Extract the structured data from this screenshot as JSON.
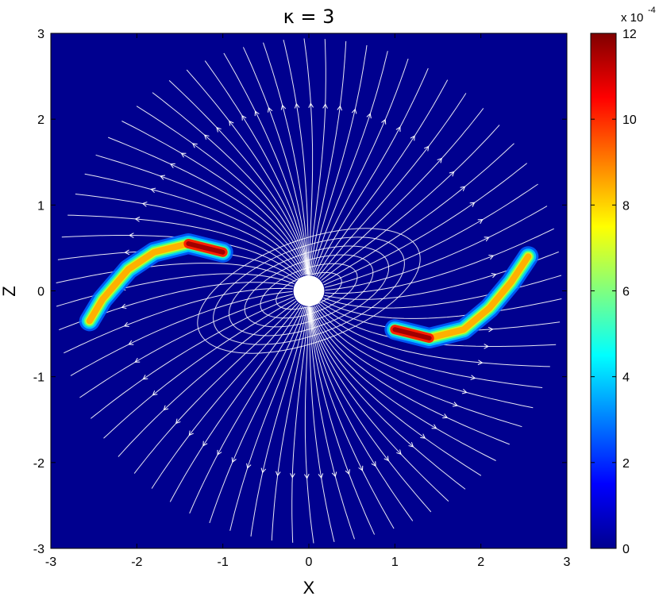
{
  "chart_data": {
    "type": "heatmap",
    "title": "κ = 3",
    "xlabel": "X",
    "ylabel": "Z",
    "xlim": [
      -3,
      3
    ],
    "ylim": [
      -3,
      3
    ],
    "x_ticks": [
      "-3",
      "-2",
      "-1",
      "0",
      "1",
      "2",
      "3"
    ],
    "y_ticks": [
      "-3",
      "-2",
      "-1",
      "0",
      "1",
      "2",
      "3"
    ],
    "colorbar": {
      "min": 0,
      "max": 12,
      "ticks": [
        "0",
        "2",
        "4",
        "6",
        "8",
        "10",
        "12"
      ],
      "multiplier": "x 10",
      "exponent": "-4",
      "colormap": "jet"
    },
    "domain_radius": 3,
    "central_body_radius": 0.18,
    "background_color": "#00008f",
    "streamline_color": "#ffffff",
    "density_features": [
      {
        "center": [
          -1.25,
          0.5
        ],
        "peak": 12,
        "description": "arc"
      },
      {
        "center": [
          1.25,
          -0.5
        ],
        "peak": 12,
        "description": "arc"
      }
    ]
  }
}
